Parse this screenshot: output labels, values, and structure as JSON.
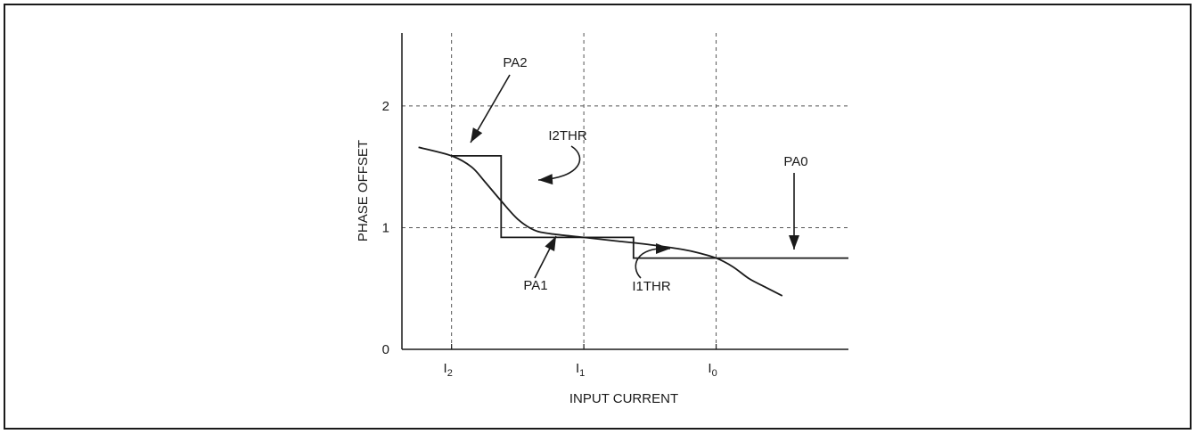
{
  "chart_data": {
    "type": "line",
    "xlabel": "INPUT CURRENT",
    "ylabel": "PHASE OFFSET",
    "ylim": [
      0,
      2.6
    ],
    "x_ticks": [
      "I2",
      "I1",
      "I0"
    ],
    "x_tick_main": [
      "I",
      "I",
      "I"
    ],
    "x_tick_sub": [
      "2",
      "1",
      "0"
    ],
    "y_ticks": [
      {
        "value": 0,
        "label": "0"
      },
      {
        "value": 1,
        "label": "1"
      },
      {
        "value": 2,
        "label": "2"
      }
    ],
    "grid": "dashed at I2, I1, I0 and PHASE OFFSET 1, 2",
    "step_series": {
      "note": "piecewise constant phase offset (PA2, PA1, PA0) with thresholds I2THR and I1THR",
      "points": [
        [
          0,
          1.59
        ],
        [
          1.5,
          1.59
        ],
        [
          1.5,
          0.92
        ],
        [
          5.5,
          0.92
        ],
        [
          5.5,
          0.75
        ],
        [
          12.0,
          0.75
        ]
      ]
    },
    "curve_series": {
      "points": [
        [
          -1.0,
          1.66
        ],
        [
          0.0,
          1.59
        ],
        [
          0.6,
          1.5
        ],
        [
          1.0,
          1.38
        ],
        [
          1.5,
          1.22
        ],
        [
          2.0,
          1.07
        ],
        [
          2.5,
          0.98
        ],
        [
          3.0,
          0.95
        ],
        [
          4.0,
          0.92
        ],
        [
          5.0,
          0.89
        ],
        [
          6.0,
          0.86
        ],
        [
          7.0,
          0.82
        ],
        [
          7.5,
          0.79
        ],
        [
          8.0,
          0.75
        ],
        [
          8.5,
          0.68
        ],
        [
          9.0,
          0.58
        ],
        [
          9.5,
          0.51
        ],
        [
          10.0,
          0.44
        ]
      ]
    },
    "x_range": [
      -1.5,
      12.0
    ],
    "x_tick_positions": [
      0,
      4,
      8
    ],
    "annotations": [
      {
        "label": "PA2"
      },
      {
        "label": "I2THR"
      },
      {
        "label": "PA1"
      },
      {
        "label": "I1THR"
      },
      {
        "label": "PA0"
      }
    ]
  }
}
